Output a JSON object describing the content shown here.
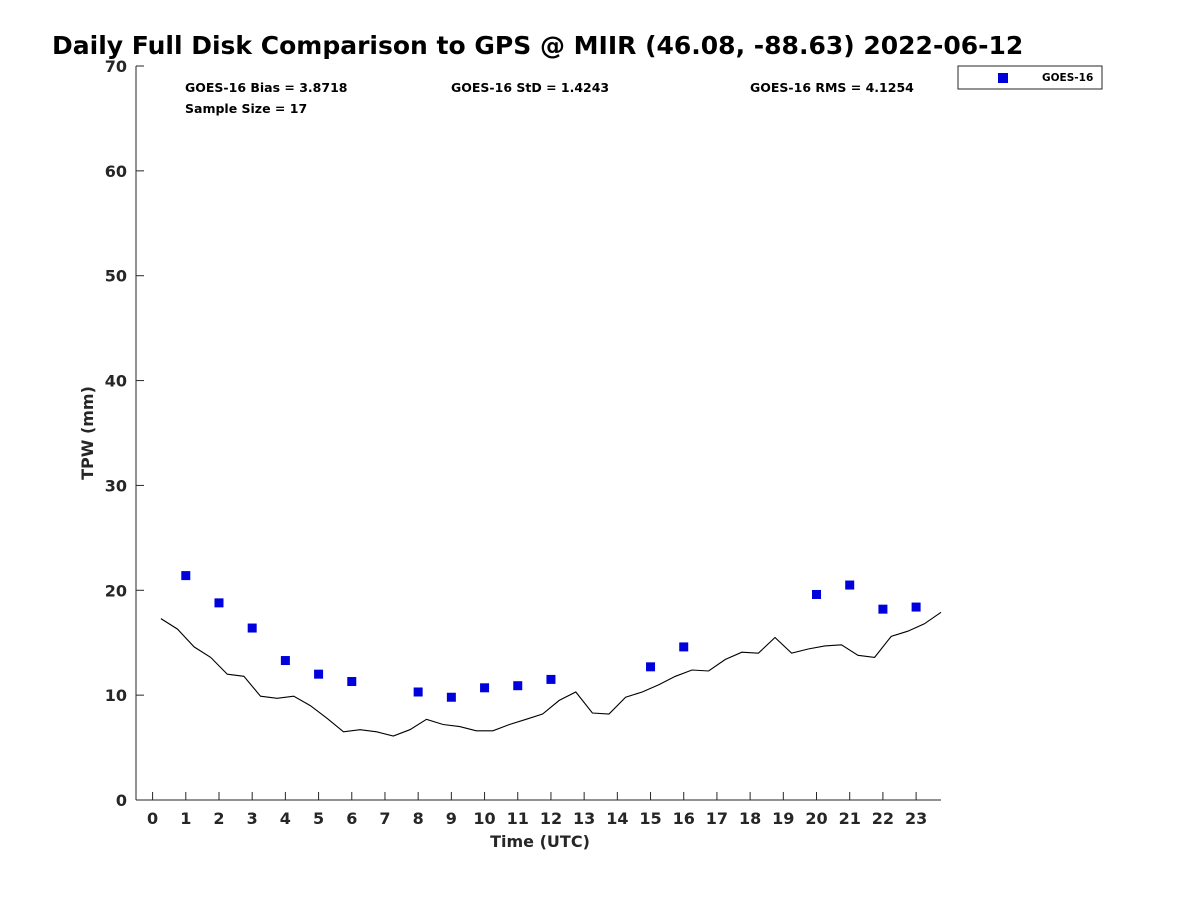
{
  "chart_data": {
    "type": "scatter",
    "title": "Daily Full Disk Comparison to GPS @ MIIR (46.08, -88.63) 2022-06-12",
    "xlabel": "Time (UTC)",
    "ylabel": "TPW (mm)",
    "xlim": [
      -0.5,
      23.75
    ],
    "ylim": [
      0,
      70
    ],
    "x_ticks": [
      "0",
      "1",
      "2",
      "3",
      "4",
      "5",
      "6",
      "7",
      "8",
      "9",
      "10",
      "11",
      "12",
      "13",
      "14",
      "15",
      "16",
      "17",
      "18",
      "19",
      "20",
      "21",
      "22",
      "23"
    ],
    "y_ticks": [
      "0",
      "10",
      "20",
      "30",
      "40",
      "50",
      "60",
      "70"
    ],
    "grid": false,
    "legend_position": "outside top-right",
    "stats": {
      "bias": "GOES-16 Bias = 3.8718",
      "std": "GOES-16 StD = 1.4243",
      "rms": "GOES-16 RMS = 4.1254",
      "sample": "Sample Size = 17"
    },
    "series": [
      {
        "name": "GOES-16",
        "style": "square-markers",
        "color": "#0000dd",
        "points": [
          [
            1,
            21.4
          ],
          [
            2,
            18.8
          ],
          [
            3,
            16.4
          ],
          [
            4,
            13.3
          ],
          [
            5,
            12.0
          ],
          [
            6,
            11.3
          ],
          [
            8,
            10.3
          ],
          [
            9,
            9.8
          ],
          [
            10,
            10.7
          ],
          [
            11,
            10.9
          ],
          [
            12,
            11.5
          ],
          [
            15,
            12.7
          ],
          [
            16,
            14.6
          ],
          [
            20,
            19.6
          ],
          [
            21,
            20.5
          ],
          [
            22,
            18.2
          ],
          [
            23,
            18.4
          ]
        ]
      },
      {
        "style": "line",
        "color": "#000000",
        "points": [
          [
            0.25,
            17.3
          ],
          [
            0.75,
            16.3
          ],
          [
            1.25,
            14.6
          ],
          [
            1.75,
            13.6
          ],
          [
            2.25,
            12.0
          ],
          [
            2.75,
            11.8
          ],
          [
            3.25,
            9.9
          ],
          [
            3.75,
            9.7
          ],
          [
            4.25,
            9.9
          ],
          [
            4.75,
            9.0
          ],
          [
            5.25,
            7.8
          ],
          [
            5.75,
            6.5
          ],
          [
            6.25,
            6.7
          ],
          [
            6.75,
            6.5
          ],
          [
            7.25,
            6.1
          ],
          [
            7.75,
            6.7
          ],
          [
            8.25,
            7.7
          ],
          [
            8.75,
            7.2
          ],
          [
            9.25,
            7.0
          ],
          [
            9.75,
            6.6
          ],
          [
            10.25,
            6.6
          ],
          [
            10.75,
            7.2
          ],
          [
            11.25,
            7.7
          ],
          [
            11.75,
            8.2
          ],
          [
            12.25,
            9.5
          ],
          [
            12.75,
            10.3
          ],
          [
            13.25,
            8.3
          ],
          [
            13.75,
            8.2
          ],
          [
            14.25,
            9.8
          ],
          [
            14.75,
            10.3
          ],
          [
            15.25,
            11.0
          ],
          [
            15.75,
            11.8
          ],
          [
            16.25,
            12.4
          ],
          [
            16.75,
            12.3
          ],
          [
            17.25,
            13.4
          ],
          [
            17.75,
            14.1
          ],
          [
            18.25,
            14.0
          ],
          [
            18.75,
            15.5
          ],
          [
            19.25,
            14.0
          ],
          [
            19.75,
            14.4
          ],
          [
            20.25,
            14.7
          ],
          [
            20.75,
            14.8
          ],
          [
            21.25,
            13.8
          ],
          [
            21.75,
            13.6
          ],
          [
            22.25,
            15.6
          ],
          [
            22.75,
            16.1
          ],
          [
            23.25,
            16.8
          ],
          [
            23.75,
            17.9
          ]
        ]
      }
    ]
  }
}
